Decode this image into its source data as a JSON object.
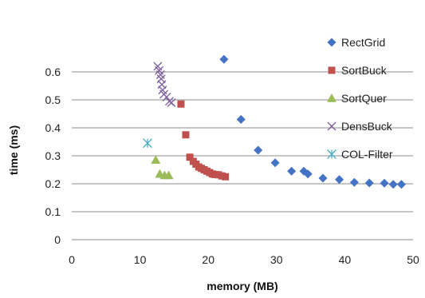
{
  "chart_data": {
    "type": "scatter",
    "title": "",
    "xlabel": "memory (MB)",
    "ylabel": "time (ms)",
    "xlim": [
      0,
      50
    ],
    "ylim": [
      0,
      0.7
    ],
    "xticks": [
      "0",
      "10",
      "20",
      "30",
      "40",
      "50"
    ],
    "yticks": [
      "0",
      "0.1",
      "0.2",
      "0.3",
      "0.4",
      "0.5",
      "0.6"
    ],
    "grid": "horizontal",
    "legend_position": "right",
    "series": [
      {
        "name": "RectGrid",
        "marker": "diamond",
        "color": "#4472C4",
        "points": [
          [
            22.3,
            0.645
          ],
          [
            24.8,
            0.43
          ],
          [
            27.3,
            0.32
          ],
          [
            29.8,
            0.275
          ],
          [
            32.2,
            0.245
          ],
          [
            34.0,
            0.245
          ],
          [
            34.6,
            0.235
          ],
          [
            36.8,
            0.22
          ],
          [
            39.2,
            0.215
          ],
          [
            41.4,
            0.205
          ],
          [
            43.6,
            0.203
          ],
          [
            45.8,
            0.202
          ],
          [
            47.1,
            0.198
          ],
          [
            48.3,
            0.198
          ]
        ]
      },
      {
        "name": "SortBuck",
        "marker": "square",
        "color": "#C0504D",
        "points": [
          [
            16.0,
            0.485
          ],
          [
            16.7,
            0.375
          ],
          [
            17.3,
            0.295
          ],
          [
            17.8,
            0.28
          ],
          [
            18.2,
            0.27
          ],
          [
            18.6,
            0.26
          ],
          [
            19.0,
            0.255
          ],
          [
            19.4,
            0.25
          ],
          [
            19.8,
            0.245
          ],
          [
            20.2,
            0.24
          ],
          [
            20.6,
            0.235
          ],
          [
            21.0,
            0.233
          ],
          [
            21.5,
            0.232
          ],
          [
            22.0,
            0.228
          ],
          [
            22.5,
            0.225
          ]
        ]
      },
      {
        "name": "SortQuer",
        "marker": "triangle",
        "color": "#9BBB59",
        "points": [
          [
            12.3,
            0.285
          ],
          [
            12.9,
            0.235
          ],
          [
            13.6,
            0.23
          ],
          [
            14.2,
            0.23
          ]
        ]
      },
      {
        "name": "DensBuck",
        "marker": "x",
        "color": "#8064A2",
        "points": [
          [
            12.6,
            0.62
          ],
          [
            12.8,
            0.605
          ],
          [
            13.0,
            0.59
          ],
          [
            13.1,
            0.575
          ],
          [
            13.2,
            0.555
          ],
          [
            13.3,
            0.535
          ],
          [
            13.5,
            0.52
          ],
          [
            13.9,
            0.51
          ],
          [
            14.3,
            0.495
          ],
          [
            14.6,
            0.49
          ]
        ]
      },
      {
        "name": "COL-Filter",
        "marker": "asterisk",
        "color": "#4BACC6",
        "points": [
          [
            11.1,
            0.345
          ]
        ]
      }
    ]
  }
}
